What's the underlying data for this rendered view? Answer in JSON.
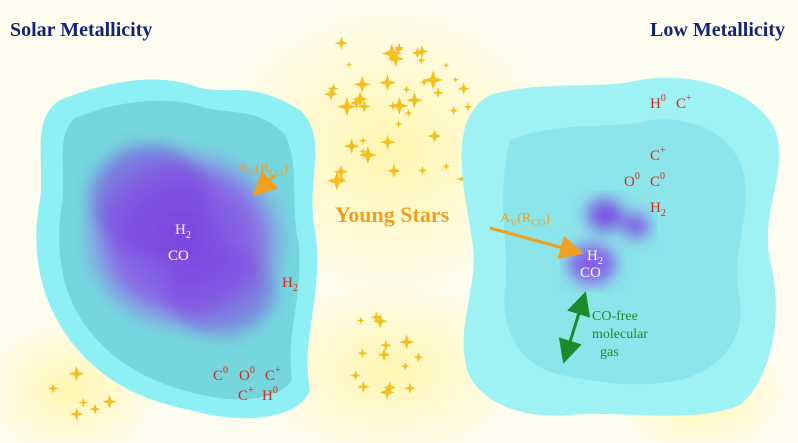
{
  "titles": {
    "left": "Solar Metallicity",
    "right": "Low Metallicity"
  },
  "center_label": "Young Stars",
  "left_cloud": {
    "av_label": {
      "text": "A",
      "sub": "V",
      "rest": "(R",
      "rest_sub": "CO",
      "end": ")"
    },
    "core_h2": {
      "text": "H",
      "sub": "2"
    },
    "core_co": "CO",
    "h2": {
      "text": "H",
      "sub": "2"
    },
    "edge_row1": [
      {
        "text": "C",
        "sup": "0"
      },
      {
        "text": "O",
        "sup": "0"
      },
      {
        "text": "C",
        "sup": "+"
      }
    ],
    "edge_row2": [
      {
        "text": "C",
        "sup": "+"
      },
      {
        "text": "H",
        "sup": "0"
      }
    ]
  },
  "right_cloud": {
    "row1": [
      {
        "text": "H",
        "sup": "0"
      },
      {
        "text": "C",
        "sup": "+"
      }
    ],
    "row2": [
      {
        "text": "C",
        "sup": "+"
      }
    ],
    "row3": [
      {
        "text": "O",
        "sup": "0"
      },
      {
        "text": "C",
        "sup": "0"
      }
    ],
    "h2": {
      "text": "H",
      "sub": "2"
    },
    "av_label": {
      "text": "A",
      "sub": "V",
      "rest": "(R",
      "rest_sub": "CO",
      "end": ")"
    },
    "core_h2": {
      "text": "H",
      "sub": "2"
    },
    "core_co": "CO",
    "co_free": [
      "CO-free",
      "molecular",
      "gas"
    ]
  }
}
